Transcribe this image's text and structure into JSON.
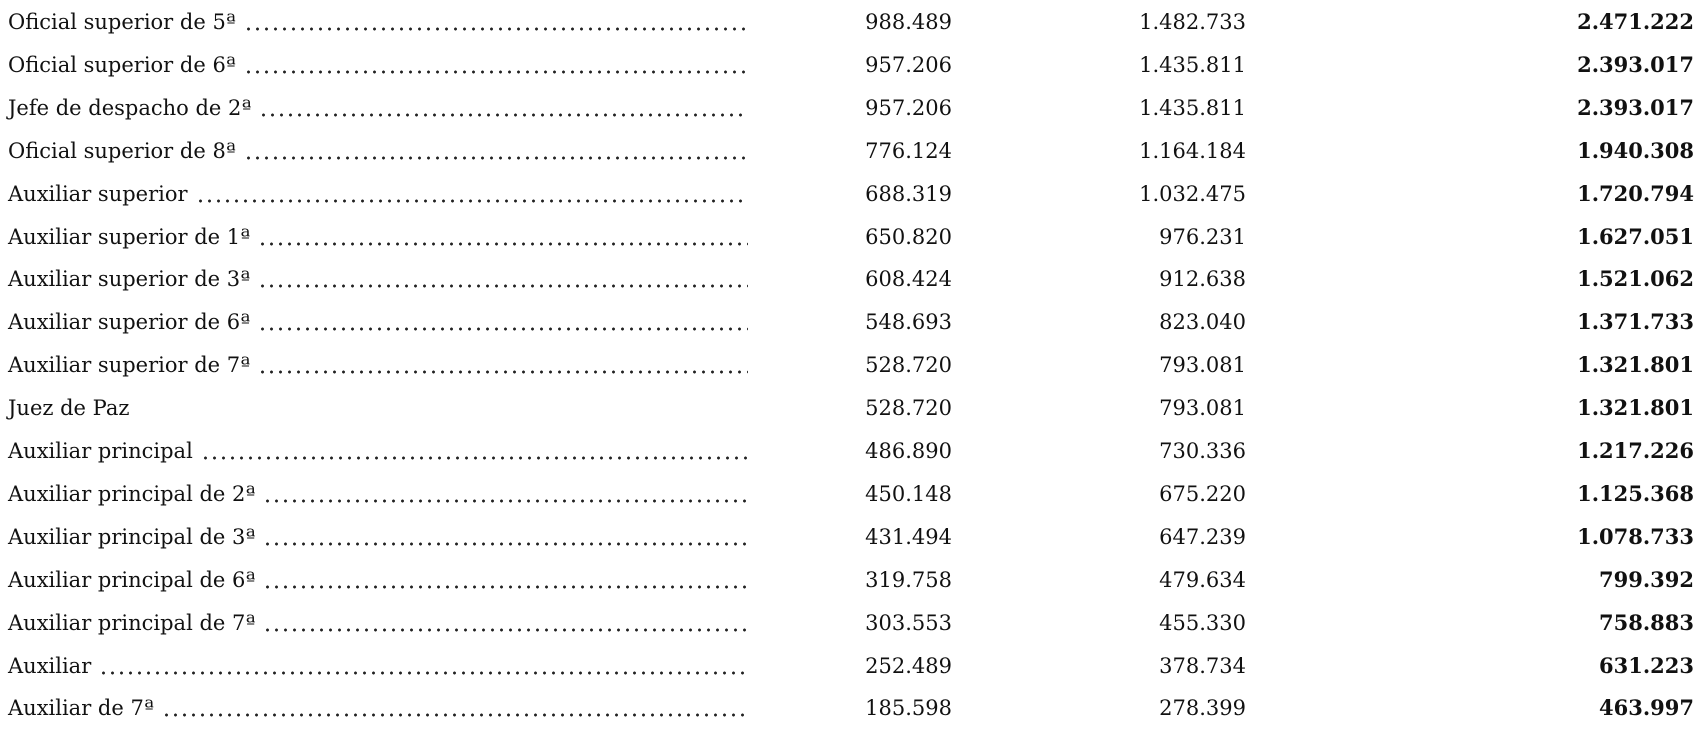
{
  "table": {
    "rows": [
      {
        "label": "Oficial superior de 5ª",
        "dotted": true,
        "values": [
          "988.489",
          "1.482.733",
          "2.471.222"
        ]
      },
      {
        "label": "Oficial superior de 6ª",
        "dotted": true,
        "values": [
          "957.206",
          "1.435.811",
          "2.393.017"
        ]
      },
      {
        "label": "Jefe de despacho de 2ª",
        "dotted": true,
        "values": [
          "957.206",
          "1.435.811",
          "2.393.017"
        ]
      },
      {
        "label": "Oficial superior de 8ª",
        "dotted": true,
        "values": [
          "776.124",
          "1.164.184",
          "1.940.308"
        ]
      },
      {
        "label": "Auxiliar superior",
        "dotted": true,
        "values": [
          "688.319",
          "1.032.475",
          "1.720.794"
        ]
      },
      {
        "label": "Auxiliar superior de 1ª",
        "dotted": true,
        "values": [
          "650.820",
          "976.231",
          "1.627.051"
        ]
      },
      {
        "label": "Auxiliar superior de 3ª",
        "dotted": true,
        "values": [
          "608.424",
          "912.638",
          "1.521.062"
        ]
      },
      {
        "label": "Auxiliar superior de 6ª",
        "dotted": true,
        "values": [
          "548.693",
          "823.040",
          "1.371.733"
        ]
      },
      {
        "label": "Auxiliar superior de 7ª",
        "dotted": true,
        "values": [
          "528.720",
          "793.081",
          "1.321.801"
        ]
      },
      {
        "label": "Juez de Paz",
        "dotted": false,
        "values": [
          "528.720",
          "793.081",
          "1.321.801"
        ]
      },
      {
        "label": "Auxiliar principal",
        "dotted": true,
        "values": [
          "486.890",
          "730.336",
          "1.217.226"
        ]
      },
      {
        "label": "Auxiliar principal de 2ª",
        "dotted": true,
        "values": [
          "450.148",
          "675.220",
          "1.125.368"
        ]
      },
      {
        "label": "Auxiliar principal de 3ª",
        "dotted": true,
        "values": [
          "431.494",
          "647.239",
          "1.078.733"
        ]
      },
      {
        "label": "Auxiliar principal de 6ª",
        "dotted": true,
        "values": [
          "319.758",
          "479.634",
          "799.392"
        ]
      },
      {
        "label": "Auxiliar principal de 7ª",
        "dotted": true,
        "values": [
          "303.553",
          "455.330",
          "758.883"
        ]
      },
      {
        "label": "Auxiliar",
        "dotted": true,
        "values": [
          "252.489",
          "378.734",
          "631.223"
        ]
      },
      {
        "label": "Auxiliar de 7ª",
        "dotted": true,
        "values": [
          "185.598",
          "278.399",
          "463.997"
        ]
      }
    ]
  }
}
